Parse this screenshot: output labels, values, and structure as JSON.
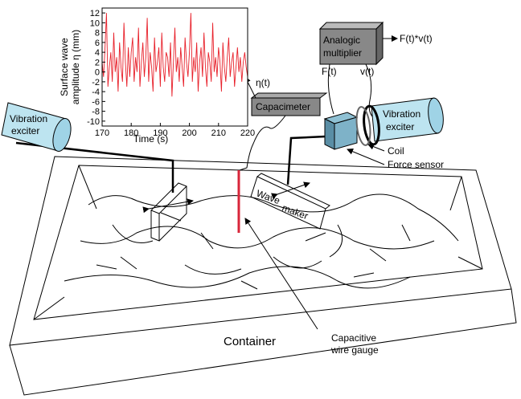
{
  "inset_chart": {
    "type": "line",
    "ylabel": [
      "Surface wave",
      "amplitude η (mm)"
    ],
    "xlabel": "Time (s)",
    "color": "#e8202a",
    "x": [
      170,
      170.5,
      171,
      171.5,
      172,
      172.5,
      173,
      173.5,
      174,
      174.5,
      175,
      175.5,
      176,
      176.5,
      177,
      177.5,
      178,
      178.5,
      179,
      179.5,
      180,
      180.5,
      181,
      181.5,
      182,
      182.5,
      183,
      183.5,
      184,
      184.5,
      185,
      185.5,
      186,
      186.5,
      187,
      187.5,
      188,
      188.5,
      189,
      189.5,
      190,
      190.5,
      191,
      191.5,
      192,
      192.5,
      193,
      193.5,
      194,
      194.5,
      195,
      195.5,
      196,
      196.5,
      197,
      197.5,
      198,
      198.5,
      199,
      199.5,
      200,
      200.5,
      201,
      201.5,
      202,
      202.5,
      203,
      203.5,
      204,
      204.5,
      205,
      205.5,
      206,
      206.5,
      207,
      207.5,
      208,
      208.5,
      209,
      209.5,
      210,
      210.5,
      211,
      211.5,
      212,
      212.5,
      213,
      213.5,
      214,
      214.5,
      215,
      215.5,
      216,
      216.5,
      217,
      217.5,
      218,
      218.5,
      219,
      219.5,
      220
    ],
    "values": [
      2,
      -1,
      5,
      12,
      -3,
      1,
      4,
      -2,
      8,
      0,
      3,
      -4,
      6,
      1,
      -2,
      10,
      2,
      -3,
      5,
      -1,
      4,
      7,
      -2,
      3,
      0,
      9,
      -3,
      2,
      6,
      -1,
      3,
      11,
      -2,
      4,
      1,
      -4,
      7,
      0,
      2,
      5,
      -3,
      8,
      1,
      -2,
      4,
      3,
      -1,
      6,
      -5,
      2,
      9,
      0,
      3,
      -2,
      5,
      1,
      -3,
      7,
      2,
      -1,
      4,
      12,
      -2,
      3,
      0,
      6,
      -4,
      2,
      5,
      -1,
      8,
      1,
      -3,
      4,
      2,
      -2,
      10,
      0,
      3,
      -1,
      5,
      2,
      -4,
      6,
      1,
      -2,
      3,
      7,
      -1,
      2,
      4,
      -3,
      1,
      5,
      0,
      3,
      -2,
      2,
      4,
      1,
      -1
    ],
    "xlim": [
      170,
      220
    ],
    "xticks": [
      170,
      180,
      190,
      200,
      210,
      220
    ],
    "ylim": [
      -11,
      13
    ],
    "yticks": [
      12,
      10,
      8,
      6,
      4,
      2,
      0,
      -2,
      -4,
      -6,
      -8,
      -10
    ]
  },
  "diagram": {
    "capacimeter": "Capacimeter",
    "eta_label": "η(t)",
    "multiplier": [
      "Analogic",
      "multiplier"
    ],
    "output": "F(t)*v(t)",
    "force_signal": "F(t)",
    "velocity_signal": "v(t)",
    "exciter_left": [
      "Vibration",
      "exciter"
    ],
    "exciter_right": [
      "Vibration",
      "exciter"
    ],
    "coil": "Coil",
    "force_sensor": "Force sensor",
    "wave_maker": [
      "Wave",
      "maker"
    ],
    "gauge": [
      "Capacitive",
      "wire gauge"
    ],
    "container": "Container"
  }
}
